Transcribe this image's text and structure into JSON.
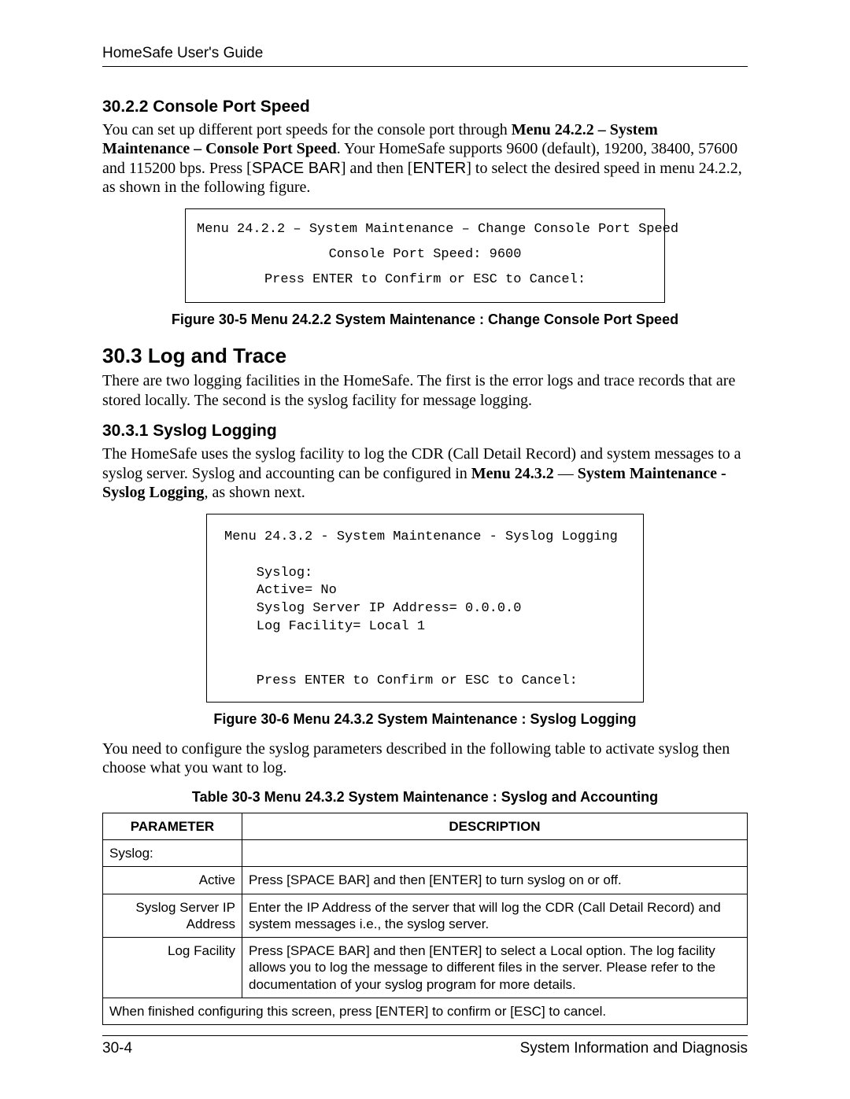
{
  "header": {
    "title": "HomeSafe User's Guide"
  },
  "s3022": {
    "heading": "30.2.2 Console Port Speed",
    "para_pre": "You can set up different port speeds for the console port through ",
    "menu_ref": "Menu 24.2.2 – System Maintenance – Console Port Speed",
    "para_mid1": ". Your HomeSafe supports 9600 (default), 19200, 38400, 57600 and 115200 bps. Press [",
    "key1": "SPACE BAR",
    "para_mid2": "] and then [",
    "key2": "ENTER",
    "para_post": "] to select the desired speed in menu 24.2.2, as shown in the following figure."
  },
  "fig305": {
    "line1": "Menu 24.2.2 – System Maintenance – Change Console Port Speed",
    "line2": "Console Port Speed: 9600",
    "line3": "Press ENTER to Confirm or ESC to Cancel:",
    "caption": "Figure 30-5 Menu 24.2.2 System Maintenance : Change Console Port Speed"
  },
  "s303": {
    "heading": "30.3  Log and Trace",
    "para": "There are two logging facilities in the HomeSafe. The first is the error logs and trace records that are stored locally. The second is the syslog facility for message logging."
  },
  "s3031": {
    "heading": "30.3.1 Syslog Logging",
    "para_pre": "The HomeSafe uses the syslog facility to log the CDR (Call Detail Record) and system messages to a syslog server. Syslog and accounting can be configured in ",
    "menu_ref": "Menu 24.3.2",
    "dash": " — ",
    "menu_ref2": "System Maintenance - Syslog Logging",
    "para_post": ", as shown next."
  },
  "fig306": {
    "line1": "Menu 24.3.2 - System Maintenance - Syslog Logging",
    "line2": "    Syslog:",
    "line3": "    Active= No",
    "line4": "    Syslog Server IP Address= 0.0.0.0",
    "line5": "    Log Facility= Local 1",
    "line6": "    Press ENTER to Confirm or ESC to Cancel:",
    "caption": "Figure 30-6 Menu 24.3.2 System Maintenance : Syslog Logging"
  },
  "after_fig306": "You need to configure the syslog parameters described in the following table to activate syslog then choose what you want to log.",
  "table303": {
    "caption": "Table 30-3 Menu 24.3.2 System Maintenance : Syslog and Accounting",
    "head_param": "PARAMETER",
    "head_desc": "DESCRIPTION",
    "rows": [
      {
        "param": "Syslog:",
        "desc": "",
        "full": true
      },
      {
        "param": "Active",
        "desc": "Press [SPACE BAR] and then [ENTER] to turn syslog on or off."
      },
      {
        "param": "Syslog Server IP Address",
        "desc": "Enter the IP Address of the server that will log the CDR (Call Detail Record) and system messages i.e., the syslog server."
      },
      {
        "param": "Log Facility",
        "desc": "Press [SPACE BAR] and then [ENTER] to select a Local option. The log facility allows you to log the message to different files in the server. Please refer to the documentation of your syslog program for more details."
      },
      {
        "param": "",
        "desc": "When finished configuring this screen, press [ENTER] to confirm or [ESC] to cancel.",
        "span": true
      }
    ]
  },
  "footer": {
    "left": "30-4",
    "right": "System Information and Diagnosis"
  }
}
